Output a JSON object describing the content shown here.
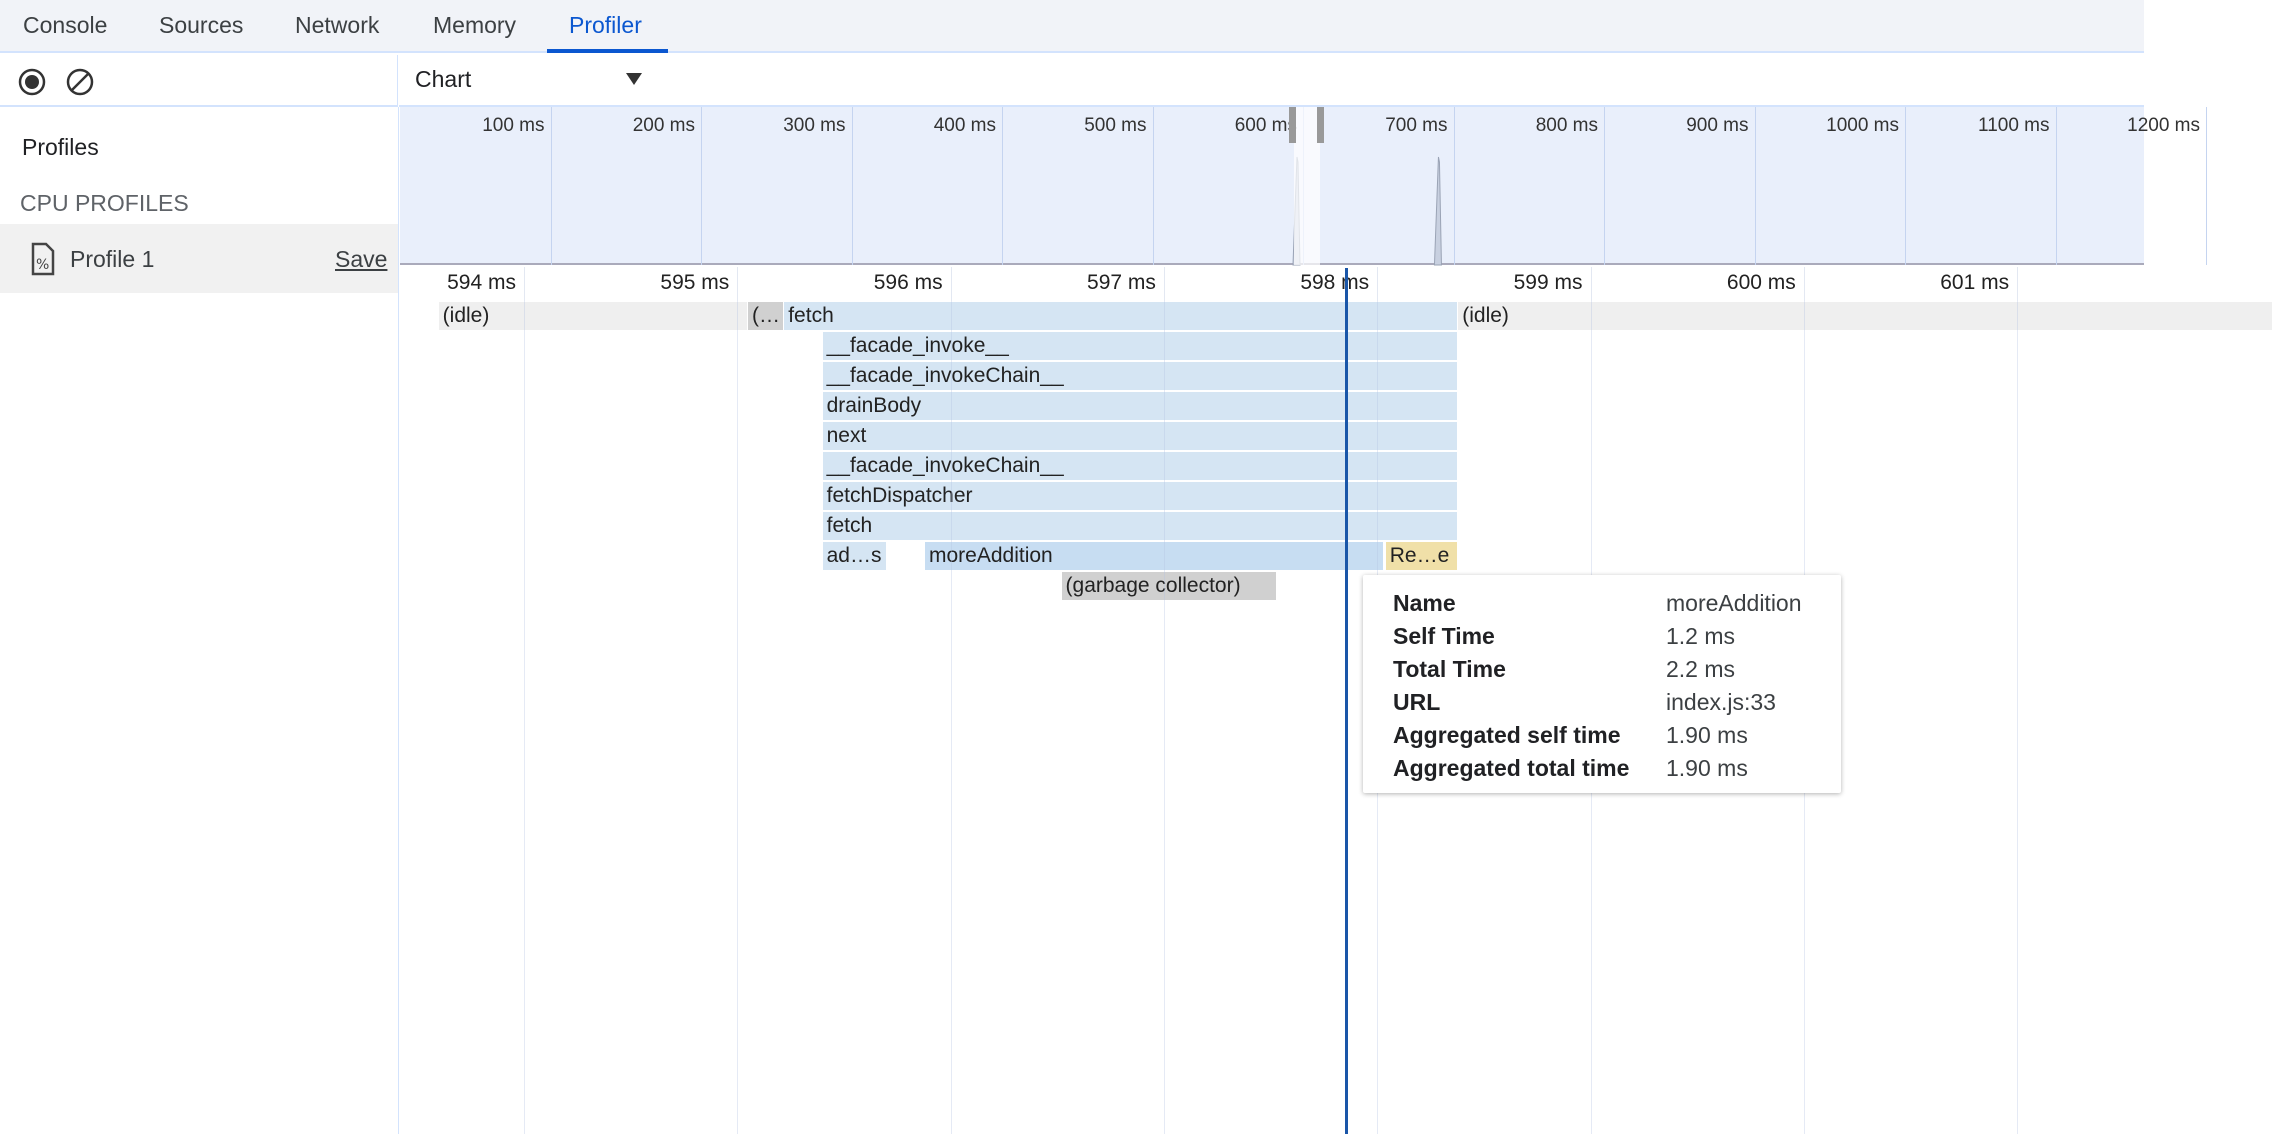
{
  "tabs": [
    {
      "label": "Console"
    },
    {
      "label": "Sources"
    },
    {
      "label": "Network"
    },
    {
      "label": "Memory"
    },
    {
      "label": "Profiler",
      "active": true
    }
  ],
  "toolbar": {
    "record_icon": "record-icon",
    "clear_icon": "clear-icon",
    "view_select": "Chart"
  },
  "sidebar": {
    "title": "Profiles",
    "section": "CPU PROFILES",
    "profiles": [
      {
        "name": "Profile 1",
        "save_label": "Save",
        "icon": "cpu-profile-file-icon"
      }
    ]
  },
  "overview": {
    "ticks": [
      "100 ms",
      "200 ms",
      "300 ms",
      "400 ms",
      "500 ms",
      "600 ms",
      "700 ms",
      "800 ms",
      "900 ms",
      "1000 ms",
      "1100 ms",
      "1200 ms"
    ],
    "tick_values": [
      100,
      200,
      300,
      400,
      500,
      600,
      700,
      800,
      900,
      1000,
      1100,
      1200
    ],
    "selection_ms": [
      596,
      609
    ],
    "spikes_ms": [
      596,
      690
    ]
  },
  "ruler": {
    "ticks": [
      "594 ms",
      "595 ms",
      "596 ms",
      "597 ms",
      "598 ms",
      "599 ms",
      "600 ms",
      "601 ms"
    ],
    "tick_values": [
      594,
      595,
      596,
      597,
      598,
      599,
      600,
      601
    ]
  },
  "flame": {
    "cursor_ms": 597.85,
    "colors": {
      "idle": "#efefef",
      "js": "#d5e5f3",
      "selected": "#c7ddf2",
      "native": "#f0e0a8",
      "system": "#d0d0d0"
    },
    "entries": [
      {
        "label": "(idle)",
        "depth": 0,
        "start": 593.6,
        "end": 595.05,
        "kind": "idle"
      },
      {
        "label": "(…",
        "depth": 0,
        "start": 595.05,
        "end": 595.22,
        "kind": "system"
      },
      {
        "label": "fetch",
        "depth": 0,
        "start": 595.22,
        "end": 598.38,
        "kind": "js"
      },
      {
        "label": "(idle)",
        "depth": 0,
        "start": 598.38,
        "end": 602.2,
        "kind": "idle"
      },
      {
        "label": "__facade_invoke__",
        "depth": 1,
        "start": 595.4,
        "end": 598.38,
        "kind": "js"
      },
      {
        "label": "__facade_invokeChain__",
        "depth": 2,
        "start": 595.4,
        "end": 598.38,
        "kind": "js"
      },
      {
        "label": "drainBody",
        "depth": 3,
        "start": 595.4,
        "end": 598.38,
        "kind": "js"
      },
      {
        "label": "next",
        "depth": 4,
        "start": 595.4,
        "end": 598.38,
        "kind": "js"
      },
      {
        "label": "__facade_invokeChain__",
        "depth": 5,
        "start": 595.4,
        "end": 598.38,
        "kind": "js"
      },
      {
        "label": "fetchDispatcher",
        "depth": 6,
        "start": 595.4,
        "end": 598.38,
        "kind": "js"
      },
      {
        "label": "fetch",
        "depth": 7,
        "start": 595.4,
        "end": 598.38,
        "kind": "js"
      },
      {
        "label": "ad…s",
        "depth": 8,
        "start": 595.4,
        "end": 595.7,
        "kind": "js"
      },
      {
        "label": "moreAddition",
        "depth": 8,
        "start": 595.88,
        "end": 598.03,
        "kind": "selected"
      },
      {
        "label": "Re…e",
        "depth": 8,
        "start": 598.04,
        "end": 598.38,
        "kind": "native"
      },
      {
        "label": "(garbage collector)",
        "depth": 9,
        "start": 596.52,
        "end": 597.53,
        "kind": "system"
      }
    ]
  },
  "tooltip": {
    "rows": [
      {
        "key": "Name",
        "value": "moreAddition"
      },
      {
        "key": "Self Time",
        "value": "1.2 ms"
      },
      {
        "key": "Total Time",
        "value": "2.2 ms"
      },
      {
        "key": "URL",
        "value": "index.js:33"
      },
      {
        "key": "Aggregated self time",
        "value": "1.90 ms"
      },
      {
        "key": "Aggregated total time",
        "value": "1.90 ms"
      }
    ]
  }
}
